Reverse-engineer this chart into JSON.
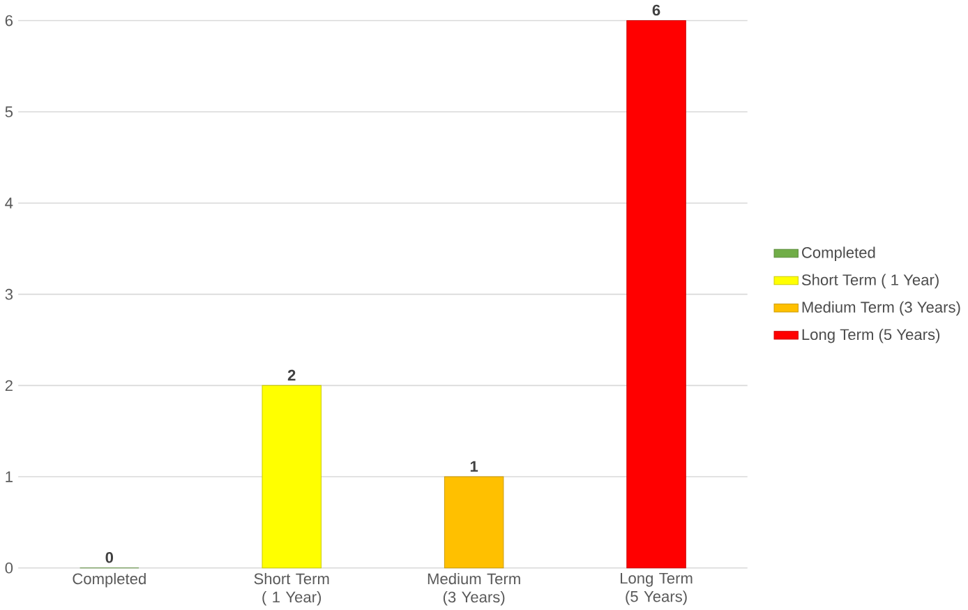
{
  "chart_data": {
    "type": "bar",
    "categories": [
      "Completed",
      "Short Term ( 1 Year)",
      "Medium Term (3 Years)",
      "Long Term (5 Years)"
    ],
    "series": [
      {
        "name": "Completed",
        "color": "#70ad47",
        "values": [
          0,
          null,
          null,
          null
        ]
      },
      {
        "name": "Short Term ( 1 Year)",
        "color": "#ffff00",
        "values": [
          null,
          2,
          null,
          null
        ]
      },
      {
        "name": "Medium Term (3 Years)",
        "color": "#ffc000",
        "values": [
          null,
          null,
          1,
          null
        ]
      },
      {
        "name": "Long Term (5 Years)",
        "color": "#ff0000",
        "values": [
          null,
          null,
          null,
          6
        ]
      }
    ],
    "ylim": [
      0,
      6
    ],
    "yticks": [
      0,
      1,
      2,
      3,
      4,
      5,
      6
    ],
    "grid": "y",
    "legend": "right",
    "data_labels": true
  }
}
